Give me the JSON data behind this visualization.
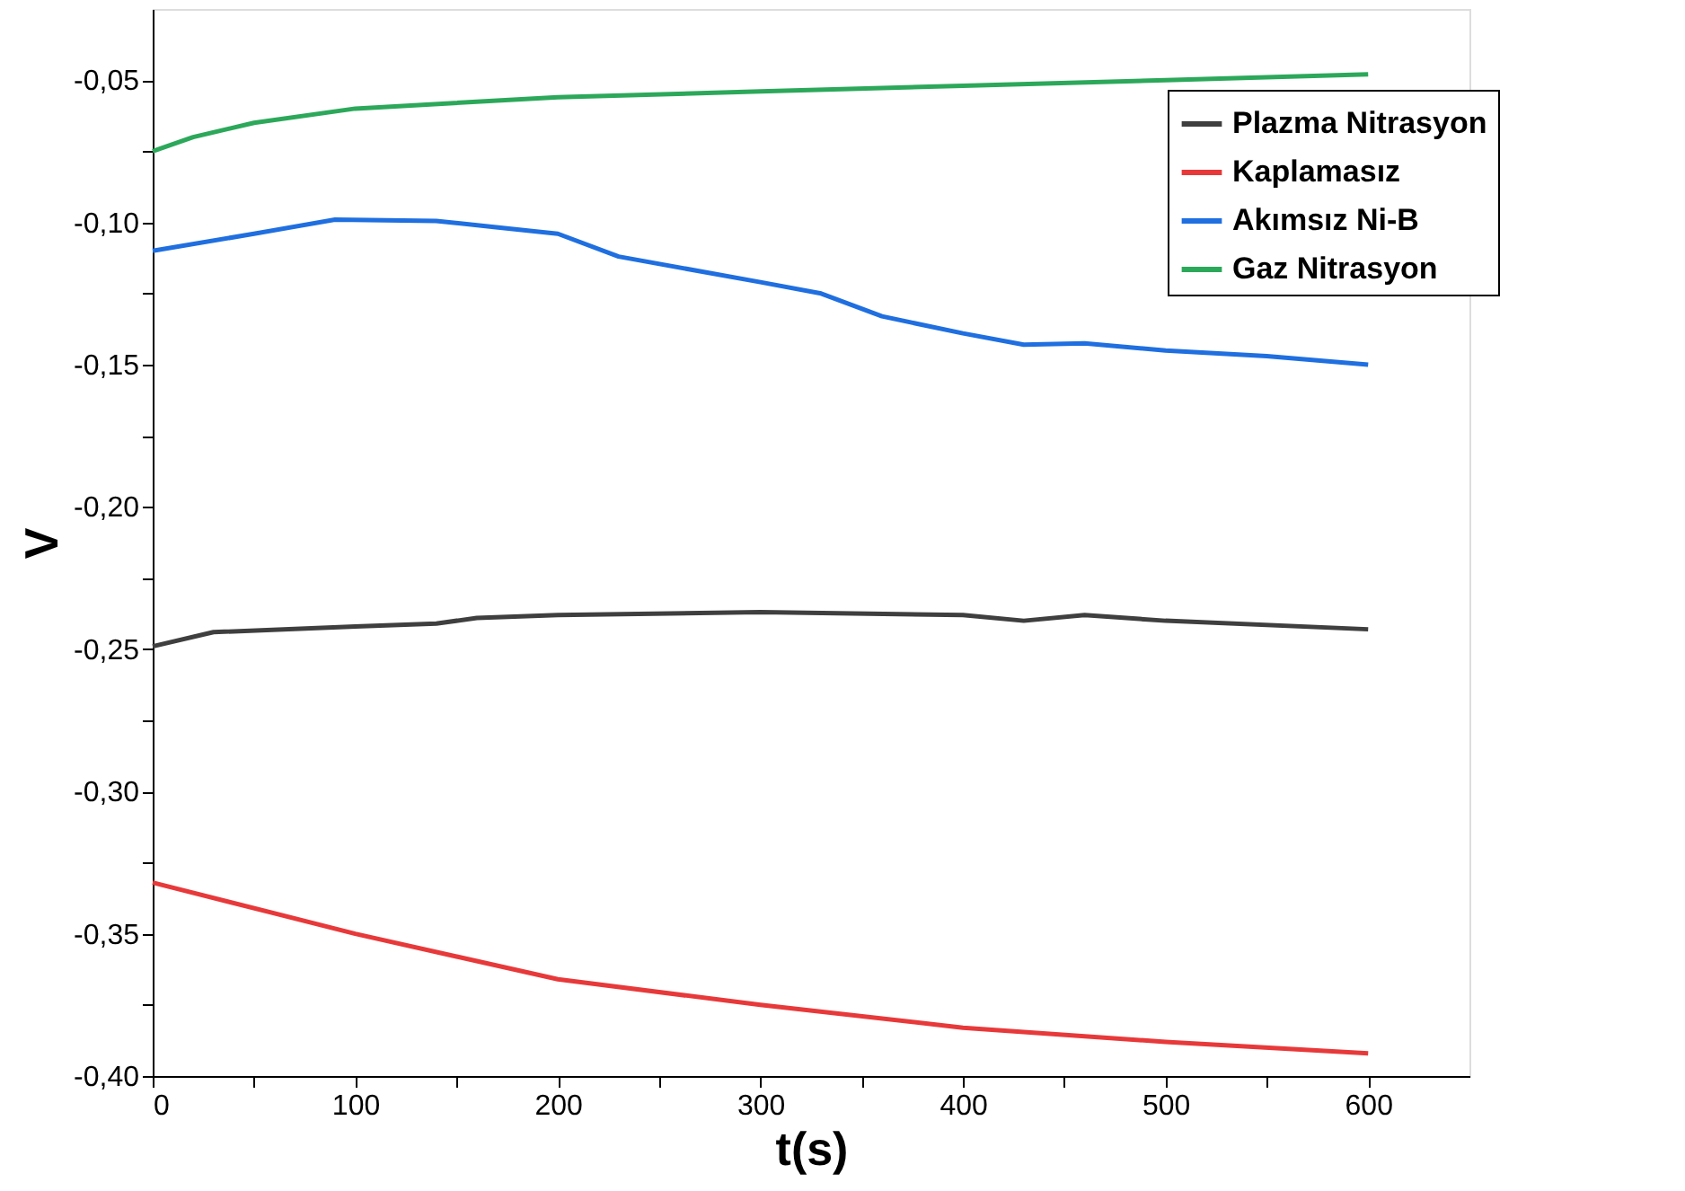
{
  "chart_data": {
    "type": "line",
    "xlabel": "t(s)",
    "ylabel": "V",
    "xlim": [
      0,
      650
    ],
    "ylim": [
      -0.4,
      -0.025
    ],
    "xticks": [
      0,
      100,
      200,
      300,
      400,
      500,
      600,
      {
        "value": 50,
        "label": null
      },
      {
        "value": 150,
        "label": null
      },
      {
        "value": 250,
        "label": null
      },
      {
        "value": 350,
        "label": null
      },
      {
        "value": 450,
        "label": null
      },
      {
        "value": 550,
        "label": null
      }
    ],
    "yticks": [
      {
        "value": -0.05,
        "label": "-0,05"
      },
      {
        "value": -0.1,
        "label": "-0,10"
      },
      {
        "value": -0.15,
        "label": "-0,15"
      },
      {
        "value": -0.2,
        "label": "-0,20"
      },
      {
        "value": -0.25,
        "label": "-0,25"
      },
      {
        "value": -0.3,
        "label": "-0,30"
      },
      {
        "value": -0.35,
        "label": "-0,35"
      },
      {
        "value": -0.4,
        "label": "-0,40"
      },
      {
        "value": -0.075,
        "label": null
      },
      {
        "value": -0.125,
        "label": null
      },
      {
        "value": -0.175,
        "label": null
      },
      {
        "value": -0.225,
        "label": null
      },
      {
        "value": -0.275,
        "label": null
      },
      {
        "value": -0.325,
        "label": null
      },
      {
        "value": -0.375,
        "label": null
      }
    ],
    "grid": false,
    "legend": "top right",
    "line_style": "solid",
    "marker": "none",
    "series": [
      {
        "name": "Plazma Nitrasyon",
        "color": "#3f3f3f",
        "x": [
          0,
          30,
          100,
          140,
          160,
          200,
          300,
          400,
          430,
          460,
          500,
          600
        ],
        "values": [
          -0.249,
          -0.244,
          -0.242,
          -0.241,
          -0.239,
          -0.238,
          -0.237,
          -0.238,
          -0.24,
          -0.238,
          -0.24,
          -0.243
        ]
      },
      {
        "name": "Kaplamasız",
        "color": "#e8393a",
        "x": [
          0,
          100,
          200,
          300,
          400,
          500,
          600
        ],
        "values": [
          -0.332,
          -0.35,
          -0.366,
          -0.375,
          -0.383,
          -0.388,
          -0.392
        ]
      },
      {
        "name": "Akımsız Ni-B",
        "color": "#1f6fe0",
        "x": [
          0,
          50,
          90,
          140,
          200,
          230,
          300,
          330,
          360,
          400,
          430,
          460,
          500,
          550,
          600
        ],
        "values": [
          -0.11,
          -0.104,
          -0.099,
          -0.0995,
          -0.104,
          -0.112,
          -0.121,
          -0.125,
          -0.133,
          -0.139,
          -0.143,
          -0.1425,
          -0.145,
          -0.147,
          -0.15
        ]
      },
      {
        "name": "Gaz Nitrasyon",
        "color": "#2ca85a",
        "x": [
          0,
          20,
          50,
          100,
          200,
          300,
          400,
          500,
          600
        ],
        "values": [
          -0.075,
          -0.07,
          -0.065,
          -0.06,
          -0.056,
          -0.054,
          -0.052,
          -0.05,
          -0.048
        ]
      }
    ]
  }
}
